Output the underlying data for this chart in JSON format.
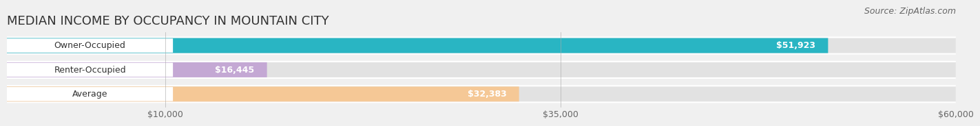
{
  "title": "MEDIAN INCOME BY OCCUPANCY IN MOUNTAIN CITY",
  "source": "Source: ZipAtlas.com",
  "categories": [
    "Owner-Occupied",
    "Renter-Occupied",
    "Average"
  ],
  "values": [
    51923,
    16445,
    32383
  ],
  "bar_colors": [
    "#29b5c3",
    "#c4a8d4",
    "#f5c896"
  ],
  "value_labels": [
    "$51,923",
    "$16,445",
    "$32,383"
  ],
  "xlim": [
    0,
    60000
  ],
  "xticks": [
    10000,
    35000,
    60000
  ],
  "xtick_labels": [
    "$10,000",
    "$35,000",
    "$60,000"
  ],
  "background_color": "#f0f0f0",
  "bar_bg_color": "#e2e2e2",
  "row_bg_color": "#e8e8e8",
  "title_fontsize": 13,
  "source_fontsize": 9,
  "label_fontsize": 9,
  "value_fontsize": 9,
  "tick_fontsize": 9
}
